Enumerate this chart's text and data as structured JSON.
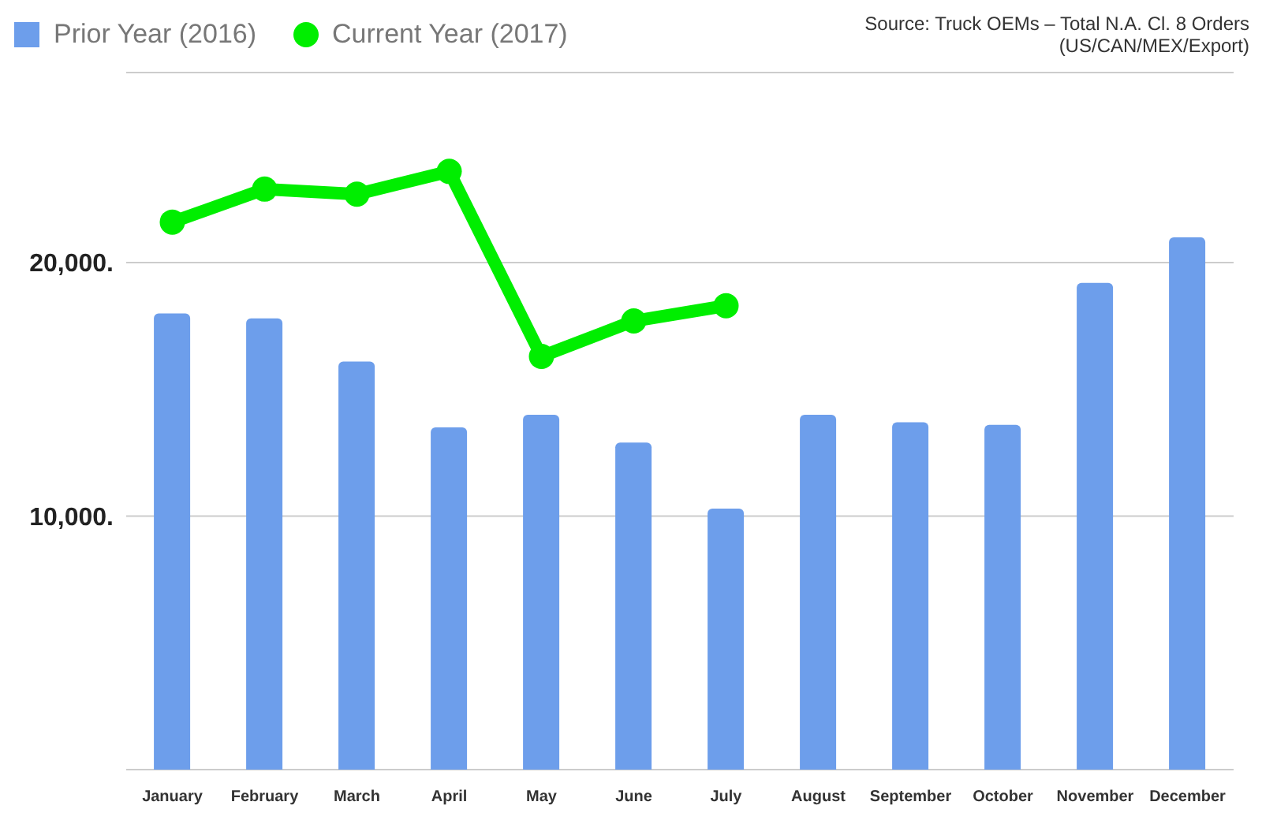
{
  "chart_data": {
    "type": "bar",
    "categories": [
      "January",
      "February",
      "March",
      "April",
      "May",
      "June",
      "July",
      "August",
      "September",
      "October",
      "November",
      "December"
    ],
    "series": [
      {
        "name": "Prior Year (2016)",
        "color": "#6d9eeb",
        "values": [
          18000,
          17800,
          16100,
          13500,
          14000,
          12900,
          10300,
          14000,
          13700,
          13600,
          19200,
          21000
        ]
      },
      {
        "name": "Current Year (2017)",
        "type": "line",
        "color": "#00ee00",
        "values": [
          21600,
          22900,
          22700,
          23600,
          16300,
          17700,
          18300,
          null,
          null,
          null,
          null,
          null
        ]
      }
    ],
    "ylim": [
      0,
      27500
    ],
    "yticks": [
      {
        "value": 10000,
        "label": "10,000."
      },
      {
        "value": 20000,
        "label": "20,000."
      }
    ],
    "grid": "y",
    "legend": "top left",
    "marker": "circle",
    "annotations": [
      "Source: Truck OEMs – Total N.A. Cl. 8 Orders (US/CAN/MEX/Export)"
    ]
  }
}
